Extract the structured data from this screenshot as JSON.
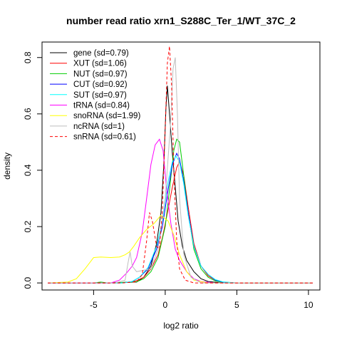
{
  "chart_data": {
    "type": "line",
    "title": "number read ratio xrn1_S288C_Ter_1/WT_37C_2",
    "xlabel": "log2 ratio",
    "ylabel": "density",
    "xlim": [
      -8.6,
      10.8
    ],
    "ylim": [
      -0.025,
      0.855
    ],
    "x_ticks": [
      -5,
      0,
      5,
      10
    ],
    "x_tick_labels": [
      "-5",
      "0",
      "5",
      "10"
    ],
    "y_ticks": [
      0.0,
      0.2,
      0.4,
      0.6,
      0.8
    ],
    "y_tick_labels": [
      "0.0",
      "0.2",
      "0.4",
      "0.6",
      "0.8"
    ],
    "grid": false,
    "legend_position": "top-left",
    "series": [
      {
        "name": "gene (sd=0.79)",
        "color": "#000000",
        "dash": "solid",
        "points": [
          [
            -8.2,
            0
          ],
          [
            -4,
            0
          ],
          [
            -2,
            0.003
          ],
          [
            -1.5,
            0.02
          ],
          [
            -1,
            0.06
          ],
          [
            -0.6,
            0.14
          ],
          [
            -0.3,
            0.25
          ],
          [
            -0.1,
            0.42
          ],
          [
            0.05,
            0.62
          ],
          [
            0.15,
            0.7
          ],
          [
            0.3,
            0.6
          ],
          [
            0.5,
            0.46
          ],
          [
            0.7,
            0.34
          ],
          [
            0.9,
            0.22
          ],
          [
            1.2,
            0.13
          ],
          [
            1.5,
            0.08
          ],
          [
            2,
            0.04
          ],
          [
            2.5,
            0.015
          ],
          [
            3,
            0.005
          ],
          [
            4,
            0
          ],
          [
            10.3,
            0
          ]
        ]
      },
      {
        "name": "XUT (sd=1.06)",
        "color": "#ff0000",
        "dash": "solid",
        "points": [
          [
            -8.2,
            0
          ],
          [
            -4,
            0
          ],
          [
            -2.5,
            0.002
          ],
          [
            -2,
            0.008
          ],
          [
            -1.5,
            0.02
          ],
          [
            -1,
            0.05
          ],
          [
            -0.5,
            0.1
          ],
          [
            -0.2,
            0.16
          ],
          [
            0.2,
            0.26
          ],
          [
            0.5,
            0.34
          ],
          [
            0.8,
            0.41
          ],
          [
            1.0,
            0.43
          ],
          [
            1.3,
            0.38
          ],
          [
            1.6,
            0.27
          ],
          [
            2.0,
            0.14
          ],
          [
            2.5,
            0.06
          ],
          [
            3,
            0.025
          ],
          [
            3.5,
            0.01
          ],
          [
            4,
            0.003
          ],
          [
            5,
            0
          ],
          [
            10.3,
            0
          ]
        ]
      },
      {
        "name": "NUT (sd=0.97)",
        "color": "#00cd00",
        "dash": "solid",
        "points": [
          [
            -8.2,
            0
          ],
          [
            -5,
            0
          ],
          [
            -4.5,
            0.003
          ],
          [
            -4,
            0
          ],
          [
            -2,
            0.004
          ],
          [
            -1.5,
            0.015
          ],
          [
            -1,
            0.04
          ],
          [
            -0.5,
            0.09
          ],
          [
            0,
            0.2
          ],
          [
            0.3,
            0.33
          ],
          [
            0.6,
            0.47
          ],
          [
            0.8,
            0.51
          ],
          [
            1.0,
            0.5
          ],
          [
            1.2,
            0.42
          ],
          [
            1.6,
            0.25
          ],
          [
            2.0,
            0.12
          ],
          [
            2.5,
            0.05
          ],
          [
            3,
            0.02
          ],
          [
            3.5,
            0.007
          ],
          [
            4,
            0.002
          ],
          [
            5,
            0
          ],
          [
            10.3,
            0
          ]
        ]
      },
      {
        "name": "CUT (sd=0.92)",
        "color": "#0000ff",
        "dash": "solid",
        "points": [
          [
            -8.2,
            0
          ],
          [
            -3,
            0
          ],
          [
            -2.3,
            0.005
          ],
          [
            -1.8,
            0.02
          ],
          [
            -1.2,
            0.05
          ],
          [
            -0.6,
            0.12
          ],
          [
            -0.2,
            0.2
          ],
          [
            0.2,
            0.33
          ],
          [
            0.5,
            0.42
          ],
          [
            0.8,
            0.46
          ],
          [
            1.0,
            0.44
          ],
          [
            1.3,
            0.36
          ],
          [
            1.6,
            0.25
          ],
          [
            2.0,
            0.13
          ],
          [
            2.5,
            0.06
          ],
          [
            3,
            0.03
          ],
          [
            3.5,
            0.01
          ],
          [
            4,
            0.003
          ],
          [
            5,
            0
          ],
          [
            10.3,
            0
          ]
        ]
      },
      {
        "name": "SUT (sd=0.97)",
        "color": "#00ffff",
        "dash": "solid",
        "points": [
          [
            -8.2,
            0
          ],
          [
            -3,
            0
          ],
          [
            -2.3,
            0.005
          ],
          [
            -1.8,
            0.02
          ],
          [
            -1.2,
            0.055
          ],
          [
            -0.6,
            0.13
          ],
          [
            -0.2,
            0.22
          ],
          [
            0.2,
            0.36
          ],
          [
            0.5,
            0.43
          ],
          [
            0.75,
            0.45
          ],
          [
            1.0,
            0.43
          ],
          [
            1.3,
            0.35
          ],
          [
            1.6,
            0.24
          ],
          [
            2.0,
            0.13
          ],
          [
            2.5,
            0.06
          ],
          [
            3,
            0.03
          ],
          [
            3.5,
            0.012
          ],
          [
            4,
            0.004
          ],
          [
            5,
            0
          ],
          [
            10.3,
            0
          ]
        ]
      },
      {
        "name": "tRNA (sd=0.84)",
        "color": "#ff00ff",
        "dash": "solid",
        "points": [
          [
            -8.2,
            0
          ],
          [
            -3.8,
            0
          ],
          [
            -3.2,
            0.01
          ],
          [
            -2.7,
            0.035
          ],
          [
            -2.3,
            0.06
          ],
          [
            -2,
            0.09
          ],
          [
            -1.6,
            0.18
          ],
          [
            -1.3,
            0.3
          ],
          [
            -1.0,
            0.42
          ],
          [
            -0.7,
            0.49
          ],
          [
            -0.4,
            0.51
          ],
          [
            -0.15,
            0.47
          ],
          [
            0.1,
            0.33
          ],
          [
            0.4,
            0.21
          ],
          [
            0.7,
            0.12
          ],
          [
            1.0,
            0.08
          ],
          [
            1.5,
            0.04
          ],
          [
            2.0,
            0.015
          ],
          [
            2.5,
            0.005
          ],
          [
            3.5,
            0
          ],
          [
            10.3,
            0
          ]
        ]
      },
      {
        "name": "snoRNA (sd=1.99)",
        "color": "#ffff00",
        "dash": "solid",
        "points": [
          [
            -8.2,
            0
          ],
          [
            -6.8,
            0.003
          ],
          [
            -6.2,
            0.015
          ],
          [
            -5.6,
            0.05
          ],
          [
            -5.0,
            0.09
          ],
          [
            -4.5,
            0.092
          ],
          [
            -3.8,
            0.09
          ],
          [
            -3.2,
            0.092
          ],
          [
            -2.8,
            0.1
          ],
          [
            -2.5,
            0.11
          ],
          [
            -2.2,
            0.13
          ],
          [
            -1.8,
            0.16
          ],
          [
            -1.3,
            0.19
          ],
          [
            -0.8,
            0.21
          ],
          [
            -0.3,
            0.24
          ],
          [
            0.2,
            0.22
          ],
          [
            0.6,
            0.17
          ],
          [
            1.0,
            0.1
          ],
          [
            1.5,
            0.04
          ],
          [
            2.0,
            0.01
          ],
          [
            3.0,
            0
          ],
          [
            10.3,
            0
          ]
        ]
      },
      {
        "name": "ncRNA (sd=1)",
        "color": "#bebebe",
        "dash": "solid",
        "points": [
          [
            -8.2,
            0
          ],
          [
            -3.5,
            0
          ],
          [
            -2.8,
            0.01
          ],
          [
            -2.6,
            0.07
          ],
          [
            -2.45,
            0.11
          ],
          [
            -2.3,
            0.06
          ],
          [
            -2.0,
            0.04
          ],
          [
            -1.0,
            0.05
          ],
          [
            -0.5,
            0.12
          ],
          [
            0.0,
            0.3
          ],
          [
            0.35,
            0.55
          ],
          [
            0.55,
            0.76
          ],
          [
            0.7,
            0.8
          ],
          [
            0.85,
            0.6
          ],
          [
            1.0,
            0.3
          ],
          [
            1.3,
            0.1
          ],
          [
            1.8,
            0.02
          ],
          [
            2.5,
            0
          ],
          [
            10.3,
            0
          ]
        ]
      },
      {
        "name": "snRNA (sd=0.61)",
        "color": "#ff0000",
        "dash": "dashed",
        "points": [
          [
            -8.2,
            0
          ],
          [
            -3,
            0
          ],
          [
            -2,
            0.004
          ],
          [
            -1.6,
            0.03
          ],
          [
            -1.3,
            0.15
          ],
          [
            -1.1,
            0.25
          ],
          [
            -0.9,
            0.22
          ],
          [
            -0.6,
            0.13
          ],
          [
            -0.4,
            0.12
          ],
          [
            -0.2,
            0.26
          ],
          [
            0.0,
            0.55
          ],
          [
            0.15,
            0.78
          ],
          [
            0.3,
            0.84
          ],
          [
            0.45,
            0.7
          ],
          [
            0.6,
            0.4
          ],
          [
            0.8,
            0.15
          ],
          [
            1.0,
            0.05
          ],
          [
            1.4,
            0.01
          ],
          [
            2.0,
            0
          ],
          [
            10.3,
            0
          ]
        ]
      }
    ]
  }
}
